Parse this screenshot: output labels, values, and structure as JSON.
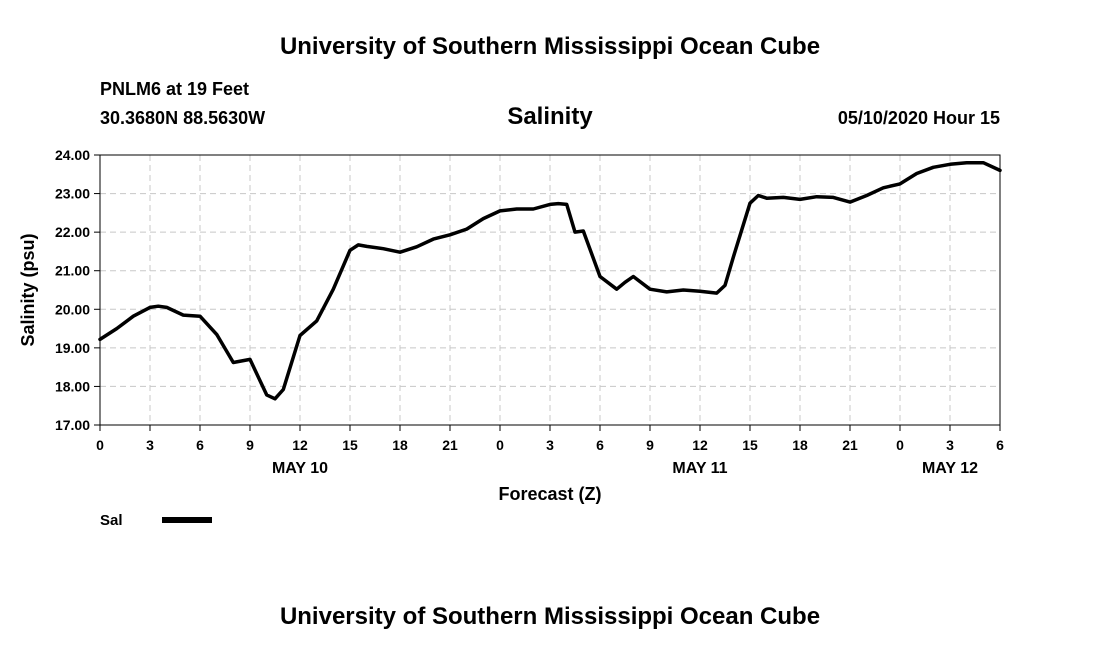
{
  "page": {
    "title_top": "University of Southern Mississippi Ocean Cube",
    "title_bottom": "University of Southern Mississippi Ocean Cube",
    "station": "PNLM6 at 19 Feet",
    "coords": "30.3680N 88.5630W",
    "datetime": "05/10/2020 Hour 15"
  },
  "chart_data": {
    "type": "line",
    "title": "Salinity",
    "xlabel": "Forecast (Z)",
    "ylabel": "Salinity (psu)",
    "ylim": [
      17,
      24
    ],
    "xlim": [
      0,
      54
    ],
    "grid": true,
    "yticks": [
      "17.00",
      "18.00",
      "19.00",
      "20.00",
      "21.00",
      "22.00",
      "23.00",
      "24.00"
    ],
    "xticks": [
      {
        "x": 0,
        "label": "0"
      },
      {
        "x": 3,
        "label": "3"
      },
      {
        "x": 6,
        "label": "6"
      },
      {
        "x": 9,
        "label": "9"
      },
      {
        "x": 12,
        "label": "12"
      },
      {
        "x": 15,
        "label": "15"
      },
      {
        "x": 18,
        "label": "18"
      },
      {
        "x": 21,
        "label": "21"
      },
      {
        "x": 24,
        "label": "0"
      },
      {
        "x": 27,
        "label": "3"
      },
      {
        "x": 30,
        "label": "6"
      },
      {
        "x": 33,
        "label": "9"
      },
      {
        "x": 36,
        "label": "12"
      },
      {
        "x": 39,
        "label": "15"
      },
      {
        "x": 42,
        "label": "18"
      },
      {
        "x": 45,
        "label": "21"
      },
      {
        "x": 48,
        "label": "0"
      },
      {
        "x": 51,
        "label": "3"
      },
      {
        "x": 54,
        "label": "6"
      }
    ],
    "day_labels": [
      {
        "x": 12,
        "label": "MAY 10"
      },
      {
        "x": 36,
        "label": "MAY 11"
      },
      {
        "x": 51,
        "label": "MAY 12"
      }
    ],
    "series": [
      {
        "name": "Sal",
        "x": [
          0,
          1,
          2,
          3,
          3.5,
          4,
          5,
          6,
          7,
          8,
          9,
          10,
          10.5,
          11,
          12,
          13,
          14,
          15,
          15.5,
          16,
          17,
          18,
          19,
          20,
          21,
          22,
          23,
          24,
          25,
          26,
          27,
          27.5,
          28,
          28.5,
          29,
          30,
          31,
          31.5,
          32,
          33,
          34,
          35,
          36,
          37,
          37.5,
          38,
          39,
          39.5,
          40,
          41,
          42,
          43,
          44,
          45,
          46,
          47,
          48,
          49,
          50,
          51,
          52,
          53,
          54
        ],
        "values": [
          19.22,
          19.5,
          19.82,
          20.05,
          20.08,
          20.05,
          19.85,
          19.82,
          19.35,
          18.62,
          18.7,
          17.78,
          17.68,
          17.92,
          19.32,
          19.7,
          20.52,
          21.53,
          21.67,
          21.63,
          21.57,
          21.48,
          21.62,
          21.82,
          21.93,
          22.08,
          22.35,
          22.55,
          22.6,
          22.6,
          22.72,
          22.74,
          22.72,
          22.0,
          22.03,
          20.85,
          20.52,
          20.7,
          20.85,
          20.52,
          20.45,
          20.5,
          20.47,
          20.42,
          20.62,
          21.35,
          22.75,
          22.95,
          22.88,
          22.9,
          22.85,
          22.92,
          22.9,
          22.78,
          22.95,
          23.15,
          23.25,
          23.52,
          23.68,
          23.76,
          23.8,
          23.8,
          23.6
        ]
      }
    ]
  },
  "legend": {
    "label": "Sal"
  }
}
